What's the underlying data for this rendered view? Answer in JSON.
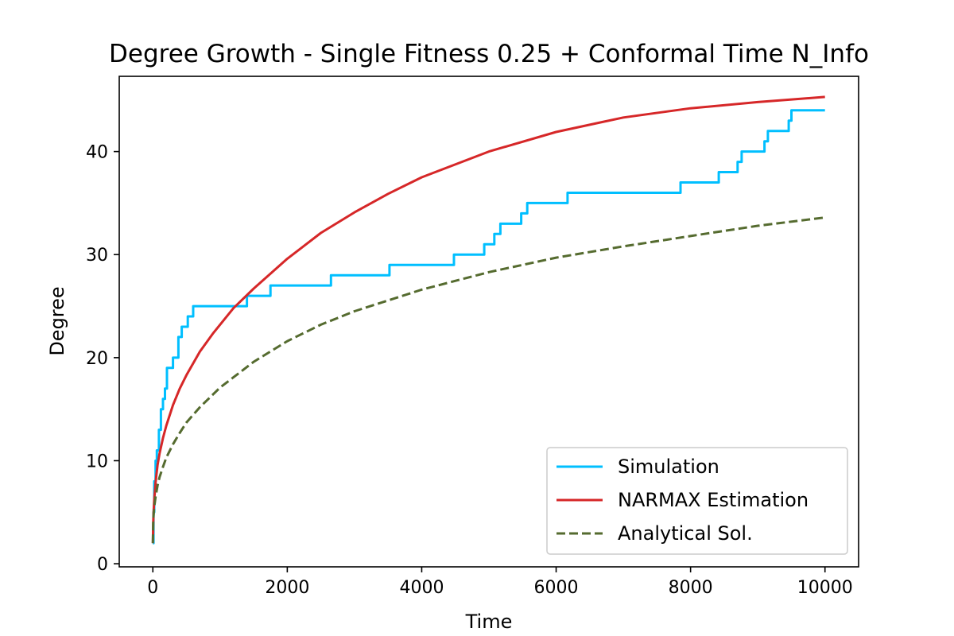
{
  "chart_data": {
    "type": "line",
    "title": "Degree Growth - Single Fitness 0.25 + Conformal Time N_Info",
    "xlabel": "Time",
    "ylabel": "Degree",
    "xlim": [
      -500,
      10500
    ],
    "ylim": [
      -0.3,
      47.3
    ],
    "xticks": [
      0,
      2000,
      4000,
      6000,
      8000,
      10000
    ],
    "yticks": [
      0,
      10,
      20,
      30,
      40
    ],
    "grid": false,
    "legend_position": "bottom-right",
    "series": [
      {
        "name": "Simulation",
        "color": "#00bfff",
        "style": "step",
        "x": [
          0,
          10,
          20,
          40,
          60,
          90,
          120,
          150,
          180,
          210,
          240,
          300,
          380,
          430,
          460,
          520,
          600,
          1400,
          1750,
          2650,
          3520,
          4480,
          4930,
          5080,
          5170,
          5480,
          5570,
          6170,
          6600,
          7850,
          8420,
          8700,
          8760,
          9100,
          9150,
          9460,
          9500,
          10000
        ],
        "y": [
          2,
          5,
          8,
          10,
          11,
          13,
          15,
          16,
          17,
          19,
          19,
          20,
          22,
          23,
          23,
          24,
          25,
          26,
          27,
          28,
          29,
          30,
          31,
          32,
          33,
          34,
          35,
          36,
          36,
          37,
          38,
          39,
          40,
          41,
          42,
          43,
          44,
          44
        ]
      },
      {
        "name": "NARMAX Estimation",
        "color": "#d62728",
        "style": "solid",
        "x": [
          0,
          5,
          10,
          20,
          40,
          70,
          100,
          150,
          200,
          300,
          400,
          500,
          700,
          900,
          1200,
          1500,
          2000,
          2500,
          3000,
          3500,
          4000,
          5000,
          6000,
          7000,
          8000,
          9000,
          10000
        ],
        "y": [
          2.0,
          3.8,
          4.9,
          6.2,
          7.9,
          9.6,
          10.7,
          12.2,
          13.4,
          15.4,
          17.0,
          18.3,
          20.6,
          22.4,
          24.8,
          26.7,
          29.6,
          32.1,
          34.1,
          35.9,
          37.5,
          40.0,
          41.9,
          43.3,
          44.2,
          44.8,
          45.3
        ]
      },
      {
        "name": "Analytical Sol.",
        "color": "#556b2f",
        "style": "dashed",
        "x": [
          0,
          5,
          10,
          20,
          40,
          70,
          100,
          150,
          200,
          300,
          400,
          500,
          700,
          1000,
          1500,
          2000,
          2500,
          3000,
          4000,
          5000,
          6000,
          7000,
          8000,
          9000,
          10000
        ],
        "y": [
          2.0,
          3.9,
          4.6,
          5.5,
          6.5,
          7.6,
          8.4,
          9.4,
          10.3,
          11.6,
          12.7,
          13.7,
          15.2,
          17.1,
          19.6,
          21.6,
          23.2,
          24.5,
          26.6,
          28.3,
          29.7,
          30.8,
          31.8,
          32.8,
          33.6
        ]
      }
    ]
  }
}
